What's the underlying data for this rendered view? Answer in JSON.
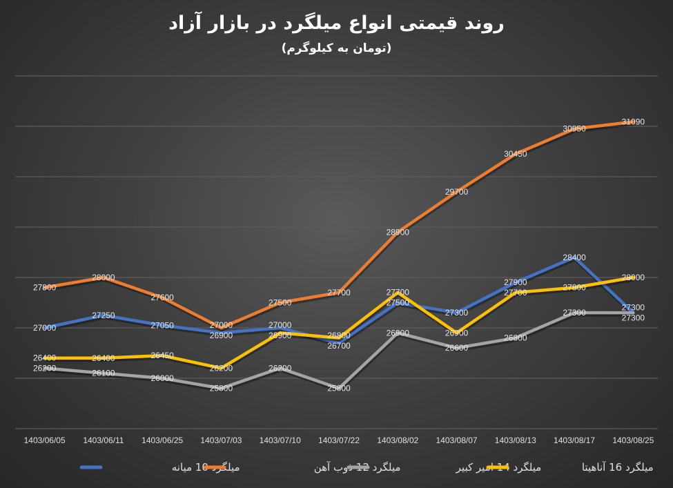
{
  "chart_data": {
    "type": "line",
    "title": "روند قیمتی انواع میلگرد در بازار آزاد",
    "subtitle": "(تومان به کیلوگرم)",
    "categories": [
      "1403/06/05",
      "1403/06/11",
      "1403/06/25",
      "1403/07/03",
      "1403/07/10",
      "1403/07/22",
      "1403/08/02",
      "1403/08/07",
      "1403/08/13",
      "1403/08/17",
      "1403/08/25"
    ],
    "ylim": [
      25000,
      32000
    ],
    "grid": true,
    "legend": "bottom",
    "data_labels": true,
    "series": [
      {
        "name": "میلگرد 10 میانه",
        "color": "#4472C4",
        "values": [
          27000,
          27250,
          27050,
          26900,
          27000,
          26700,
          27500,
          27300,
          27900,
          28400,
          27300
        ]
      },
      {
        "name": "میلگرد 12 ذوب آهن",
        "color": "#ED7D31",
        "values": [
          27800,
          28000,
          27600,
          27000,
          27500,
          27700,
          28900,
          29700,
          30450,
          30950,
          31090
        ]
      },
      {
        "name": "میلگرد 14 امیر کبیر",
        "color": "#A5A5A5",
        "values": [
          26200,
          26100,
          26000,
          25800,
          26200,
          25800,
          26900,
          26600,
          26800,
          27300,
          27300
        ]
      },
      {
        "name": "میلگرد 16 آناهیتا",
        "color": "#FFC000",
        "values": [
          26400,
          26400,
          26450,
          26200,
          26900,
          26800,
          27700,
          26900,
          27700,
          27800,
          28000
        ]
      }
    ]
  }
}
